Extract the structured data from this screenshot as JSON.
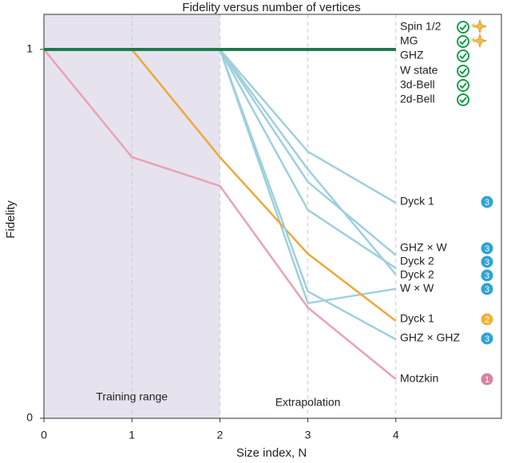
{
  "chart_data": {
    "type": "line",
    "title": "Fidelity versus number of vertices",
    "xlabel": "Size index, N",
    "ylabel": "Fidelity",
    "x": [
      0,
      1,
      2,
      3,
      4
    ],
    "xlim": [
      0,
      5.2
    ],
    "xticks": [
      0,
      1,
      2,
      3,
      4
    ],
    "ylim": [
      0,
      1.095
    ],
    "yticks": [
      0,
      1
    ],
    "shaded_region": {
      "range": [
        0,
        2
      ],
      "label": "Training range",
      "color": "#e6e3ef"
    },
    "annotations": [
      "Extrapolation"
    ],
    "series": [
      {
        "name": "Spin 1/2",
        "color": "#1a7a4c",
        "values": [
          1,
          1,
          1,
          1,
          1
        ],
        "icon": "check",
        "sparkle": true
      },
      {
        "name": "MG",
        "color": "#1a7a4c",
        "values": [
          1,
          1,
          1,
          1,
          1
        ],
        "icon": "check",
        "sparkle": true
      },
      {
        "name": "GHZ",
        "color": "#1a7a4c",
        "values": [
          1,
          1,
          1,
          1,
          1
        ],
        "icon": "check"
      },
      {
        "name": "W state",
        "color": "#1a7a4c",
        "values": [
          1,
          1,
          1,
          1,
          1
        ],
        "icon": "check"
      },
      {
        "name": "3d-Bell",
        "color": "#1a7a4c",
        "values": [
          1,
          1,
          1,
          1,
          1
        ],
        "icon": "check"
      },
      {
        "name": "2d-Bell",
        "color": "#1a7a4c",
        "values": [
          1,
          1,
          1,
          1,
          1
        ],
        "icon": "check"
      },
      {
        "name": "Dyck 1",
        "color": "#9fd0dc",
        "values": [
          null,
          null,
          1,
          0.723,
          0.584
        ],
        "badge": "3",
        "badge_color": "#2fa3d5"
      },
      {
        "name": "GHZ × W",
        "color": "#9fd0dc",
        "values": [
          null,
          null,
          1,
          0.641,
          0.442
        ],
        "badge": "3",
        "badge_color": "#2fa3d5"
      },
      {
        "name": "Dyck 2",
        "color": "#9fd0dc",
        "values": [
          null,
          null,
          1,
          0.565,
          0.407
        ],
        "badge": "3",
        "badge_color": "#2fa3d5"
      },
      {
        "name": "Dyck 2",
        "color": "#9fd0dc",
        "values": [
          null,
          null,
          1,
          0.675,
          0.39
        ],
        "badge": "3",
        "badge_color": "#2fa3d5"
      },
      {
        "name": "W × W",
        "color": "#9fd0dc",
        "values": [
          null,
          null,
          1,
          0.312,
          0.351
        ],
        "badge": "3",
        "badge_color": "#2fa3d5"
      },
      {
        "name": "Dyck 1",
        "color": "#eea83a",
        "values": [
          1,
          1,
          0.708,
          0.446,
          0.264
        ],
        "badge": "2",
        "badge_color": "#f2b233"
      },
      {
        "name": "GHZ × GHZ",
        "color": "#9fd0dc",
        "values": [
          null,
          null,
          1,
          0.344,
          0.214
        ],
        "badge": "3",
        "badge_color": "#2fa3d5"
      },
      {
        "name": "Motzkin",
        "color": "#e8a3b5",
        "values": [
          1,
          0.708,
          0.63,
          0.3,
          0.106
        ],
        "badge": "1",
        "badge_color": "#d6849c"
      }
    ]
  }
}
